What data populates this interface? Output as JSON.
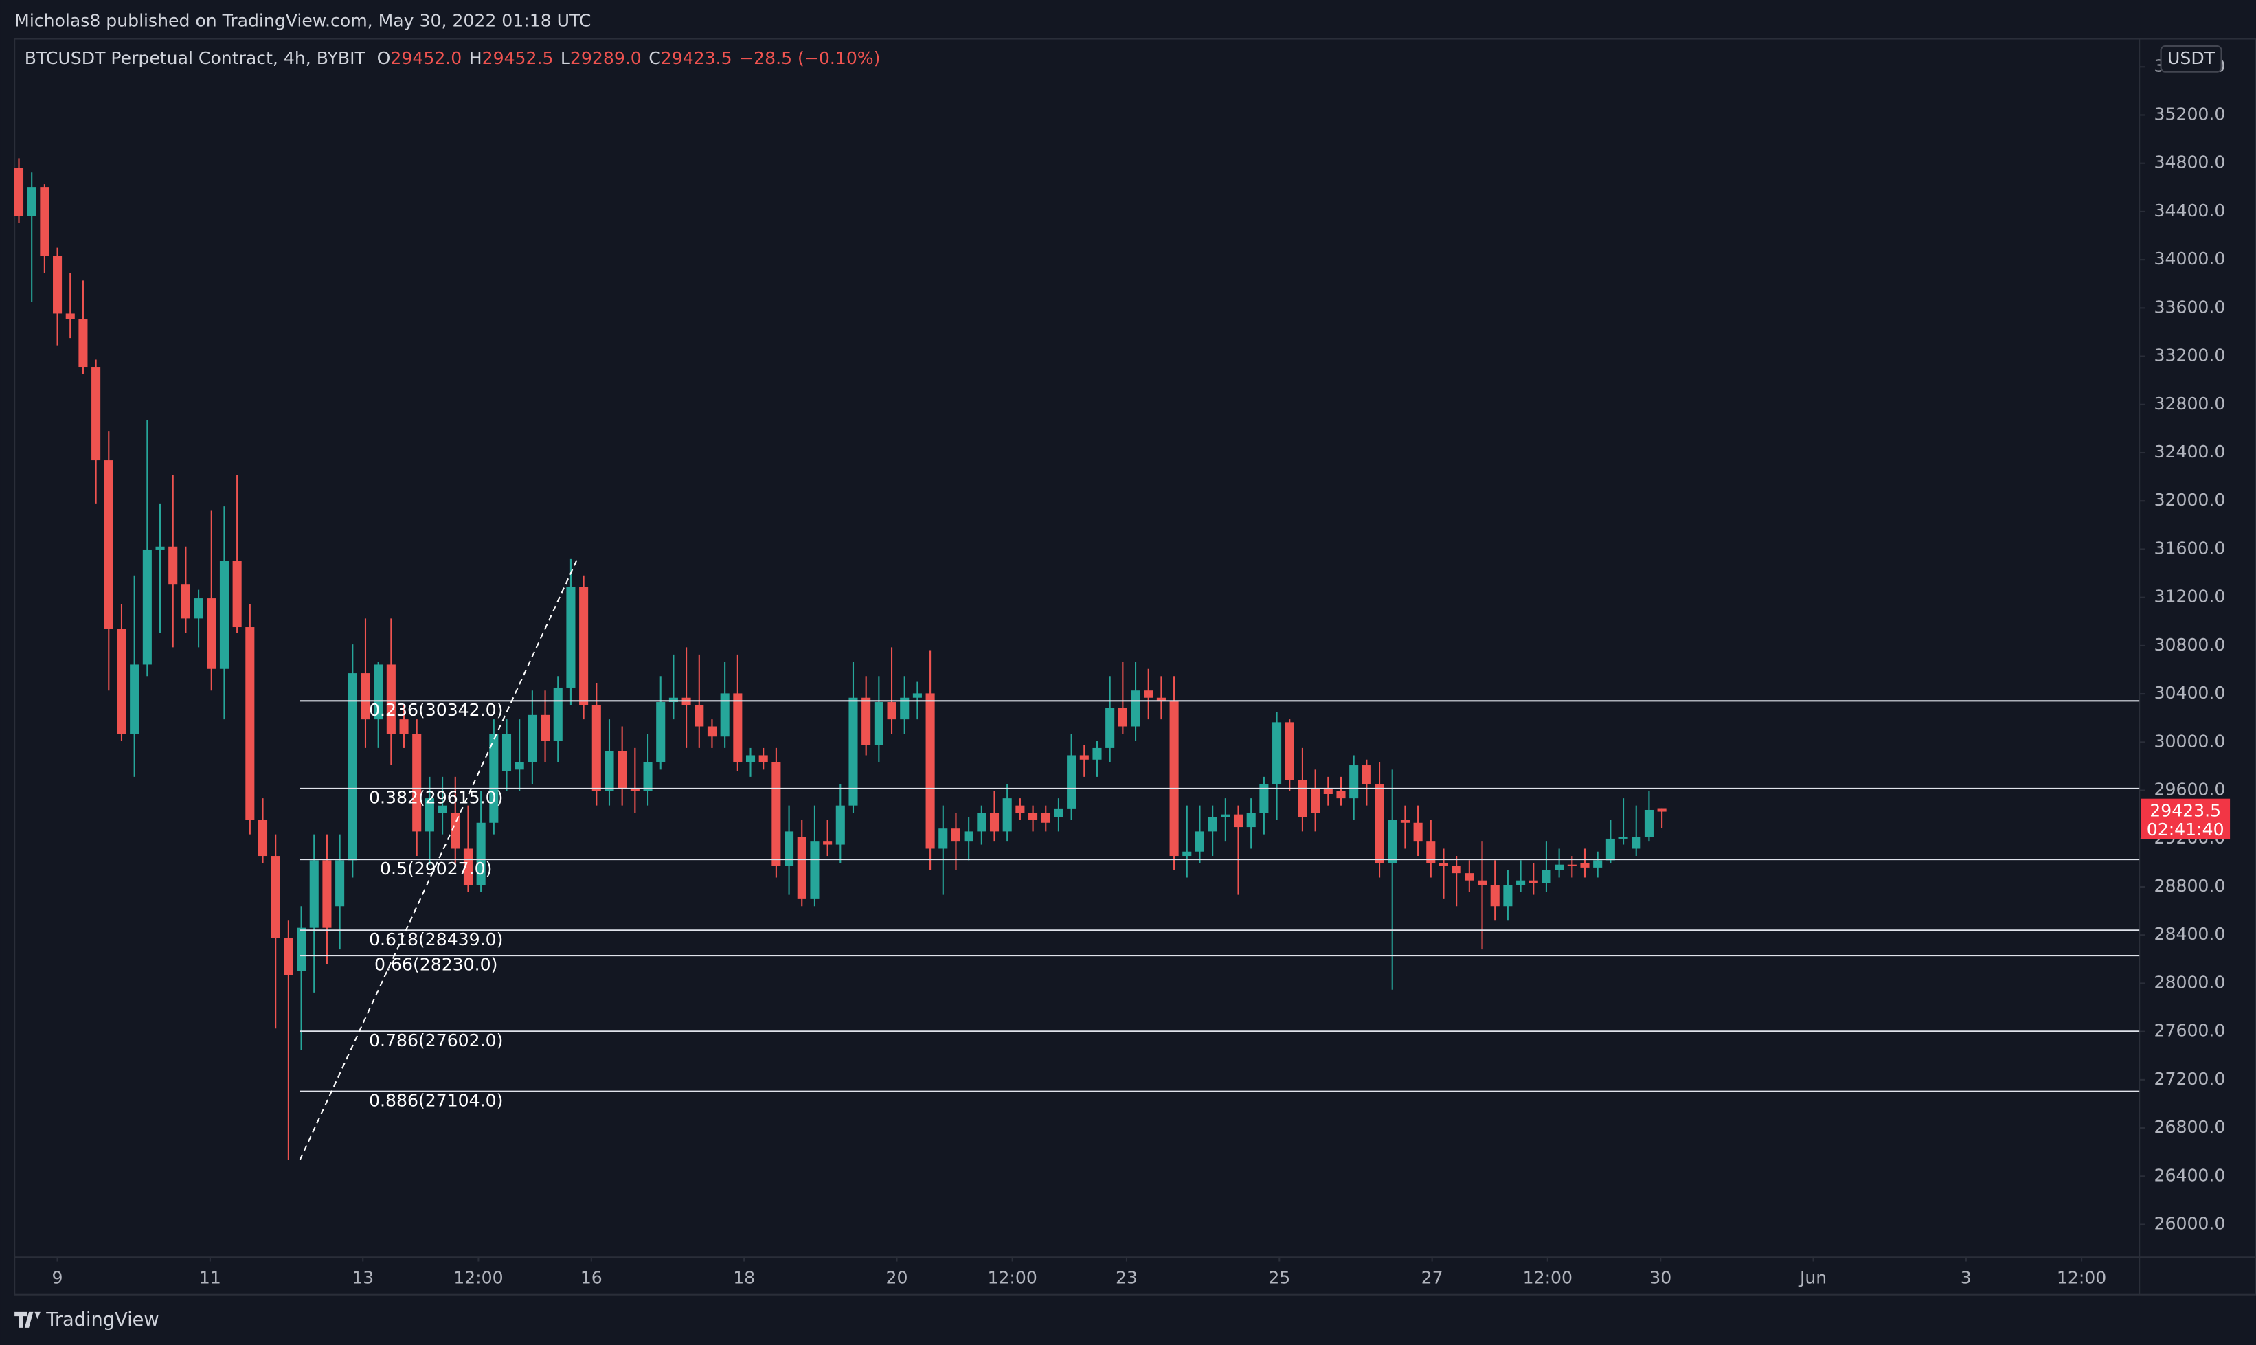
{
  "chart_data": {
    "type": "candlestick",
    "publisher": "Micholas8 published on TradingView.com, May 30, 2022 01:18 UTC",
    "title": "BTCUSDT Perpetual Contract, 4h, BYBIT",
    "ohlc_header": [
      {
        "key": "O",
        "value": "29452.0"
      },
      {
        "key": "H",
        "value": "29452.5"
      },
      {
        "key": "L",
        "value": "29289.0"
      },
      {
        "key": "C",
        "value": "29423.5"
      }
    ],
    "change": "−28.5 (−0.10%)",
    "axis_unit": "USDT",
    "brand": "TradingView",
    "up_color": "#26a69a",
    "down_color": "#ef5350",
    "open": [
      34759,
      34365,
      34604,
      34031,
      33554,
      33506,
      33112,
      32337,
      30941,
      30070,
      30643,
      31597,
      31621,
      31311,
      31025,
      31192,
      30607,
      31502,
      30953,
      29355,
      29056,
      28376,
      28102,
      28460,
      29020,
      28639,
      29020,
      30571,
      30189,
      30643,
      30189,
      30070,
      29259,
      29414,
      29414,
      29116,
      28817,
      29331,
      29760,
      29772,
      29832,
      30225,
      30010,
      30452,
      31287,
      30309,
      29593,
      29927,
      29617,
      29593,
      29832,
      30332,
      30368,
      30309,
      30130,
      30046,
      30404,
      29832,
      29891,
      29832,
      28972,
      29211,
      28698,
      29175,
      29150,
      29474,
      30368,
      29975,
      30332,
      30189,
      30368,
      30404,
      29116,
      29283,
      29175,
      29259,
      29414,
      29259,
      29474,
      29414,
      29414,
      29378,
      29450,
      29891,
      29855,
      29951,
      30285,
      30130,
      30428,
      30368,
      30344,
      29056,
      29092,
      29259,
      29378,
      29400,
      29295,
      29414,
      29653,
      30165,
      29688,
      29617,
      29617,
      29593,
      29534,
      29808,
      29653,
      28996,
      29355,
      29331,
      29175,
      28996,
      28972,
      28913,
      28853,
      28817,
      28639,
      28817,
      28853,
      28829,
      28937,
      28984,
      28996,
      28960,
      29020,
      29199,
      29116,
      29211,
      29452
    ],
    "high": [
      34842,
      34723,
      34627,
      34100,
      33888,
      33828,
      33172,
      32576,
      31144,
      31382,
      32671,
      31979,
      32218,
      31621,
      31263,
      31919,
      31955,
      32218,
      31144,
      29534,
      29235,
      28519,
      28639,
      29235,
      29235,
      29235,
      30810,
      31025,
      30667,
      31025,
      30309,
      30189,
      29712,
      29712,
      29712,
      29474,
      29593,
      30189,
      30189,
      30189,
      30428,
      30428,
      30547,
      31518,
      31382,
      30488,
      30189,
      30130,
      29951,
      30070,
      30547,
      30726,
      30786,
      30726,
      30189,
      30667,
      30726,
      29951,
      29951,
      29951,
      29474,
      29355,
      29474,
      29355,
      29653,
      30667,
      30547,
      30547,
      30786,
      30547,
      30500,
      30762,
      29474,
      29414,
      29378,
      29474,
      29593,
      29653,
      29534,
      29474,
      29474,
      29534,
      30070,
      29975,
      30010,
      30547,
      30667,
      30667,
      30607,
      30547,
      30547,
      29474,
      29474,
      29474,
      29534,
      29474,
      29534,
      29712,
      30249,
      30189,
      29951,
      29772,
      29712,
      29712,
      29891,
      29855,
      29832,
      29772,
      29474,
      29474,
      29355,
      29116,
      29056,
      29020,
      29175,
      29020,
      28937,
      29020,
      28996,
      29175,
      29116,
      29056,
      29116,
      29092,
      29355,
      29534,
      29474,
      29593,
      29452.5
    ],
    "low": [
      34305,
      33649,
      33888,
      33291,
      33351,
      33053,
      31979,
      30428,
      30010,
      29712,
      30547,
      30905,
      30786,
      30905,
      30786,
      30428,
      30189,
      30905,
      29235,
      28996,
      27625,
      26536,
      27446,
      27923,
      28162,
      28281,
      28877,
      29951,
      29951,
      29808,
      29951,
      29056,
      28984,
      29235,
      28996,
      28758,
      28758,
      29235,
      29593,
      29593,
      29653,
      29832,
      29832,
      30309,
      30189,
      29474,
      29474,
      29474,
      29414,
      29474,
      29772,
      30189,
      29951,
      29951,
      29951,
      29951,
      29760,
      29712,
      29772,
      28877,
      28734,
      28639,
      28639,
      29056,
      28996,
      29414,
      29891,
      29832,
      30070,
      30070,
      30189,
      28937,
      28734,
      28937,
      29020,
      29150,
      29175,
      29175,
      29355,
      29259,
      29259,
      29259,
      29355,
      29712,
      29712,
      29832,
      30070,
      30010,
      30189,
      30189,
      28937,
      28877,
      28996,
      29056,
      29175,
      28734,
      29116,
      29235,
      29355,
      29593,
      29259,
      29259,
      29474,
      29474,
      29355,
      29474,
      28877,
      27947,
      29116,
      29056,
      28877,
      28698,
      28639,
      28758,
      28281,
      28519,
      28519,
      28758,
      28734,
      28758,
      28877,
      28877,
      28877,
      28877,
      28996,
      29150,
      29056,
      29175,
      29289
    ],
    "close": [
      34365,
      34604,
      34031,
      33554,
      33506,
      33112,
      32337,
      30941,
      30070,
      30643,
      31597,
      31621,
      31311,
      31025,
      31192,
      30607,
      31502,
      30953,
      29355,
      29056,
      28376,
      28066,
      28460,
      29020,
      28460,
      29020,
      30571,
      30189,
      30643,
      30070,
      30070,
      29259,
      29534,
      29474,
      29116,
      28817,
      29331,
      30070,
      30070,
      29832,
      30225,
      30010,
      30452,
      31287,
      30309,
      29593,
      29927,
      29617,
      29593,
      29832,
      30332,
      30368,
      30309,
      30130,
      30046,
      30404,
      29832,
      29891,
      29832,
      28972,
      29259,
      28698,
      29175,
      29150,
      29474,
      30368,
      29975,
      30332,
      30189,
      30368,
      30404,
      29116,
      29283,
      29175,
      29259,
      29414,
      29259,
      29534,
      29414,
      29355,
      29331,
      29450,
      29891,
      29855,
      29951,
      30285,
      30130,
      30428,
      30368,
      30344,
      29056,
      29092,
      29259,
      29378,
      29400,
      29295,
      29414,
      29653,
      30165,
      29688,
      29378,
      29414,
      29569,
      29534,
      29808,
      29653,
      28996,
      29355,
      29331,
      29175,
      28996,
      28972,
      28913,
      28853,
      28817,
      28639,
      28817,
      28853,
      28829,
      28937,
      28984,
      28972,
      28960,
      29020,
      29199,
      29211,
      29211,
      29438,
      29423.5
    ],
    "xlim": [
      -0.34,
      165.2
    ],
    "xticks": [
      {
        "value": 3.0,
        "label": "9"
      },
      {
        "value": 14.9,
        "label": "11"
      },
      {
        "value": 26.8,
        "label": "13"
      },
      {
        "value": 35.8,
        "label": "12:00"
      },
      {
        "value": 44.6,
        "label": "16"
      },
      {
        "value": 56.5,
        "label": "18"
      },
      {
        "value": 68.4,
        "label": "20"
      },
      {
        "value": 77.4,
        "label": "12:00"
      },
      {
        "value": 86.3,
        "label": "23"
      },
      {
        "value": 98.2,
        "label": "25"
      },
      {
        "value": 110.1,
        "label": "27"
      },
      {
        "value": 119.1,
        "label": "12:00"
      },
      {
        "value": 127.9,
        "label": "30"
      },
      {
        "value": 139.8,
        "label": "Jun"
      },
      {
        "value": 151.7,
        "label": "3"
      },
      {
        "value": 160.7,
        "label": "12:00"
      }
    ],
    "ylim": [
      25728,
      35832
    ],
    "yticks": [
      {
        "value": 26000,
        "label": "26000.0"
      },
      {
        "value": 26400,
        "label": "26400.0"
      },
      {
        "value": 26800,
        "label": "26800.0"
      },
      {
        "value": 27200,
        "label": "27200.0"
      },
      {
        "value": 27600,
        "label": "27600.0"
      },
      {
        "value": 28000,
        "label": "28000.0"
      },
      {
        "value": 28400,
        "label": "28400.0"
      },
      {
        "value": 28800,
        "label": "28800.0"
      },
      {
        "value": 29200,
        "label": "29200.0"
      },
      {
        "value": 29600,
        "label": "29600.0"
      },
      {
        "value": 30000,
        "label": "30000.0"
      },
      {
        "value": 30400,
        "label": "30400.0"
      },
      {
        "value": 30800,
        "label": "30800.0"
      },
      {
        "value": 31200,
        "label": "31200.0"
      },
      {
        "value": 31600,
        "label": "31600.0"
      },
      {
        "value": 32000,
        "label": "32000.0"
      },
      {
        "value": 32400,
        "label": "32400.0"
      },
      {
        "value": 32800,
        "label": "32800.0"
      },
      {
        "value": 33200,
        "label": "33200.0"
      },
      {
        "value": 33600,
        "label": "33600.0"
      },
      {
        "value": 34000,
        "label": "34000.0"
      },
      {
        "value": 34400,
        "label": "34400.0"
      },
      {
        "value": 34800,
        "label": "34800.0"
      },
      {
        "value": 35200,
        "label": "35200.0"
      },
      {
        "value": 35600,
        "label": "35600.0"
      }
    ],
    "fib_trend": {
      "x": [
        21.9,
        43.5
      ],
      "y": [
        26536,
        31518
      ]
    },
    "fib_levels": [
      {
        "value": 30342,
        "label": "0.236(30342.0)"
      },
      {
        "value": 29615,
        "label": "0.382(29615.0)"
      },
      {
        "value": 29027,
        "label": "0.5(29027.0)"
      },
      {
        "value": 28439,
        "label": "0.618(28439.0)"
      },
      {
        "value": 28230,
        "label": "0.66(28230.0)"
      },
      {
        "value": 27602,
        "label": "0.786(27602.0)"
      },
      {
        "value": 27104,
        "label": "0.886(27104.0)"
      }
    ],
    "last_price": {
      "value": 29423.5,
      "label": "29423.5"
    },
    "countdown": "02:41:40"
  }
}
